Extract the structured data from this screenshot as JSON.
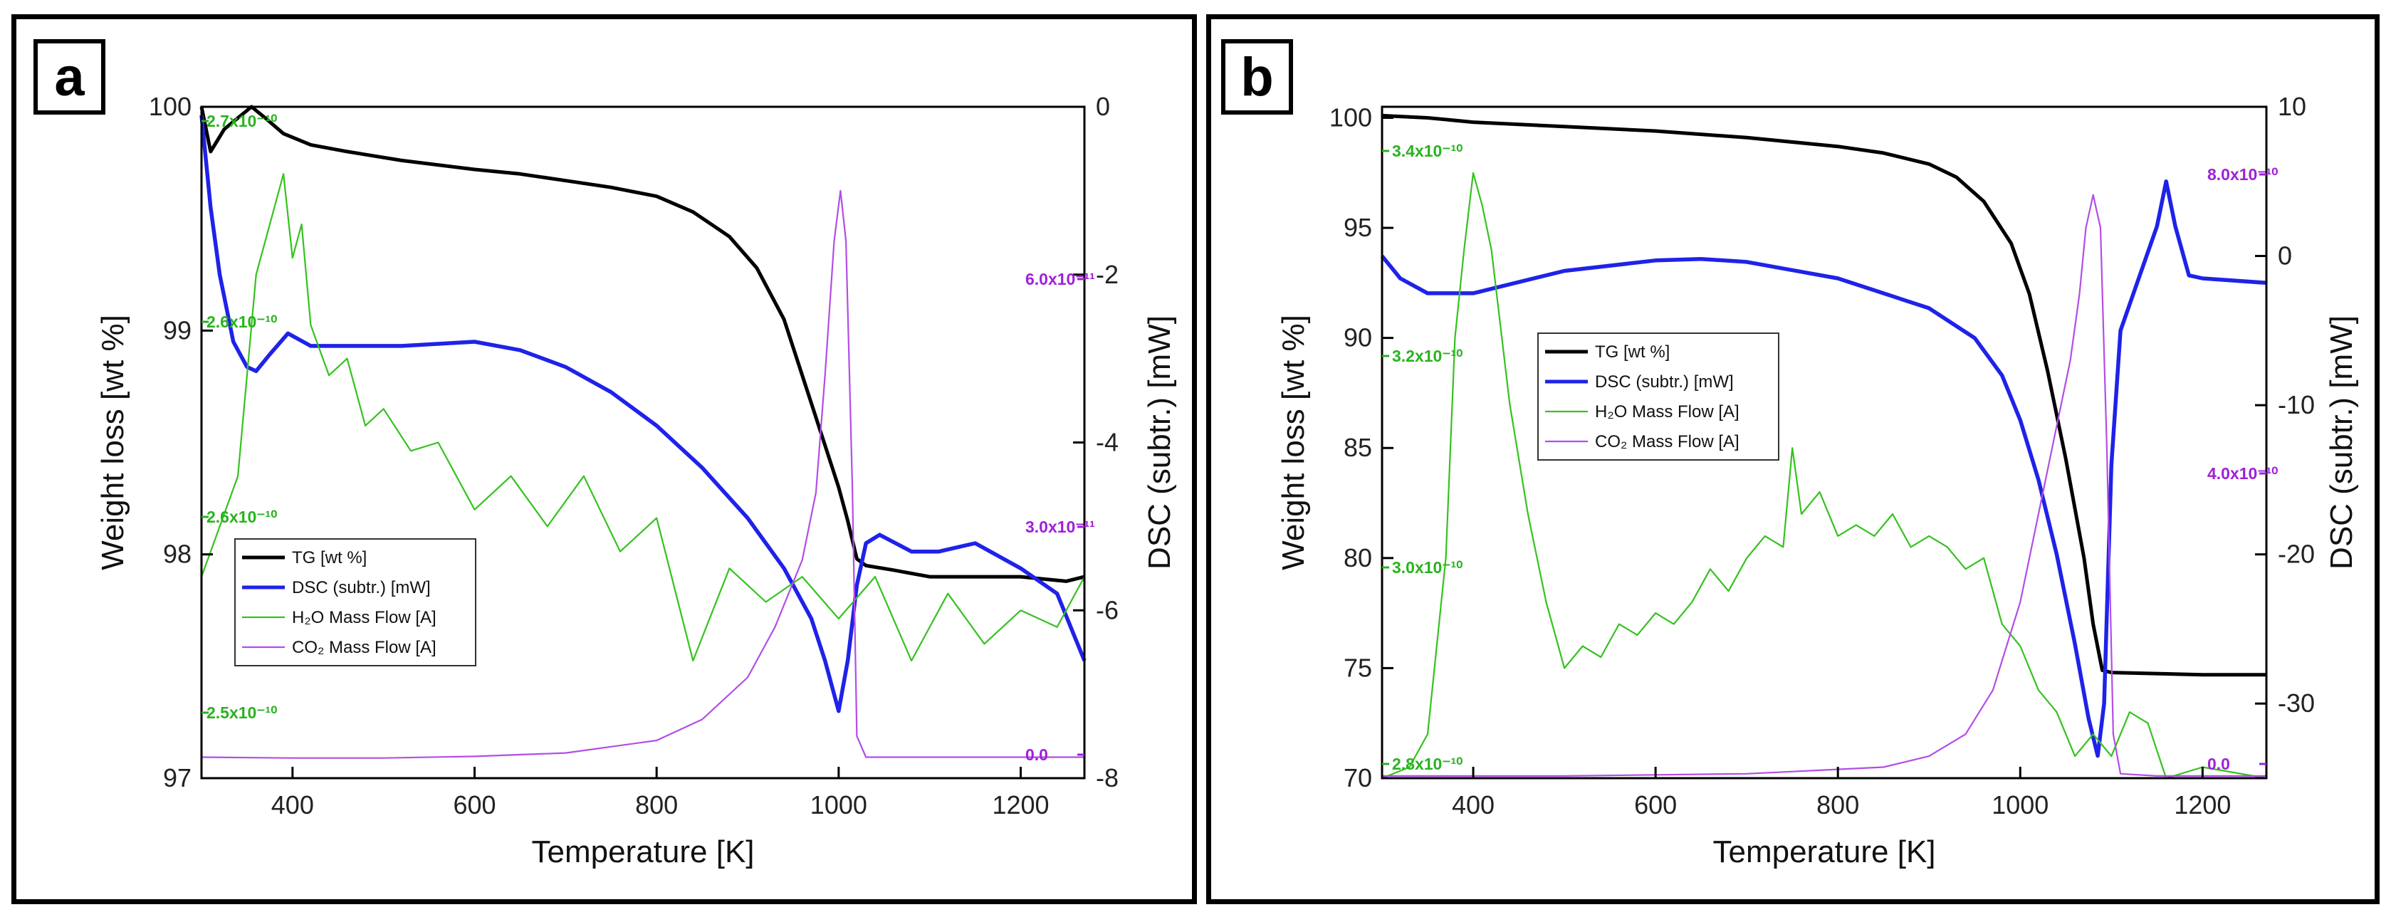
{
  "colors": {
    "tg": "#000000",
    "dsc": "#1f22e8",
    "h2o": "#35c21f",
    "co2": "#b34de6",
    "h2o_label": "#29b31f",
    "co2_label": "#a020d8"
  },
  "chart_data": [
    {
      "type": "line",
      "panel_label": "a",
      "xlabel": "Temperature [K]",
      "ylabel": "Weight loss [wt %]",
      "y2label": "DSC (subtr.) [mW]",
      "xlim": [
        300,
        1270
      ],
      "ylim": [
        97,
        100
      ],
      "y2lim": [
        -8,
        0
      ],
      "xticks": [
        "400",
        "600",
        "800",
        "1000",
        "1200"
      ],
      "yticks": [
        "97",
        "98",
        "99",
        "100"
      ],
      "y2ticks": [
        "-8",
        "-6",
        "-4",
        "-2",
        "0"
      ],
      "h2o_axis_labels": [
        "2.5x10⁻¹⁰",
        "2.6x10⁻¹⁰",
        "2.6x10⁻¹⁰",
        "2.7x10⁻¹⁰"
      ],
      "co2_axis_labels": [
        "0.0",
        "3.0x10⁻¹¹",
        "6.0x10⁻¹¹"
      ],
      "legend": [
        "TG [wt %]",
        "DSC (subtr.) [mW]",
        "H₂O Mass Flow [A]",
        "CO₂ Mass Flow [A]"
      ],
      "series": [
        {
          "name": "TG [wt %]",
          "axis": "left",
          "x": [
            300,
            310,
            325,
            340,
            355,
            370,
            390,
            420,
            460,
            520,
            600,
            650,
            700,
            750,
            800,
            840,
            880,
            910,
            940,
            960,
            980,
            1000,
            1010,
            1020,
            1030,
            1060,
            1100,
            1150,
            1200,
            1250,
            1270
          ],
          "y": [
            100,
            99.8,
            99.9,
            99.95,
            100,
            99.95,
            99.88,
            99.83,
            99.8,
            99.76,
            99.72,
            99.7,
            99.67,
            99.64,
            99.6,
            99.53,
            99.42,
            99.28,
            99.05,
            98.8,
            98.55,
            98.3,
            98.15,
            97.98,
            97.95,
            97.93,
            97.9,
            97.9,
            97.9,
            97.88,
            97.9
          ]
        },
        {
          "name": "DSC (subtr.) [mW]",
          "axis": "right",
          "x": [
            300,
            310,
            320,
            335,
            350,
            360,
            375,
            395,
            420,
            460,
            520,
            600,
            650,
            700,
            750,
            800,
            850,
            900,
            940,
            970,
            985,
            1000,
            1010,
            1020,
            1030,
            1045,
            1080,
            1110,
            1150,
            1200,
            1240,
            1270
          ],
          "y": [
            -0.1,
            -1.2,
            -2.0,
            -2.8,
            -3.1,
            -3.15,
            -2.95,
            -2.7,
            -2.85,
            -2.85,
            -2.85,
            -2.8,
            -2.9,
            -3.1,
            -3.4,
            -3.8,
            -4.3,
            -4.9,
            -5.5,
            -6.1,
            -6.6,
            -7.2,
            -6.6,
            -5.7,
            -5.2,
            -5.1,
            -5.3,
            -5.3,
            -5.2,
            -5.5,
            -5.8,
            -6.6
          ]
        },
        {
          "name": "H₂O Mass Flow [A]",
          "axis": "right",
          "unit_scale": "secondary",
          "x": [
            300,
            320,
            340,
            360,
            380,
            390,
            400,
            410,
            420,
            440,
            460,
            480,
            500,
            530,
            560,
            600,
            640,
            680,
            720,
            760,
            800,
            840,
            880,
            920,
            960,
            1000,
            1040,
            1080,
            1120,
            1160,
            1200,
            1240,
            1270
          ],
          "y": [
            -5.6,
            -5.0,
            -4.4,
            -2.0,
            -1.2,
            -0.8,
            -1.8,
            -1.4,
            -2.6,
            -3.2,
            -3.0,
            -3.8,
            -3.6,
            -4.1,
            -4.0,
            -4.8,
            -4.4,
            -5.0,
            -4.4,
            -5.3,
            -4.9,
            -6.6,
            -5.5,
            -5.9,
            -5.6,
            -6.1,
            -5.6,
            -6.6,
            -5.8,
            -6.4,
            -6.0,
            -6.2,
            -5.6
          ]
        },
        {
          "name": "CO₂ Mass Flow [A]",
          "axis": "right",
          "unit_scale": "secondary",
          "x": [
            300,
            400,
            500,
            600,
            700,
            800,
            850,
            900,
            930,
            960,
            975,
            985,
            995,
            1002,
            1008,
            1015,
            1020,
            1030,
            1100,
            1200,
            1270
          ],
          "y": [
            -7.75,
            -7.76,
            -7.76,
            -7.74,
            -7.7,
            -7.55,
            -7.3,
            -6.8,
            -6.2,
            -5.4,
            -4.6,
            -3.2,
            -1.6,
            -1.0,
            -1.6,
            -4.5,
            -7.5,
            -7.75,
            -7.75,
            -7.75,
            -7.75
          ]
        }
      ]
    },
    {
      "type": "line",
      "panel_label": "b",
      "xlabel": "Temperature [K]",
      "ylabel": "Weight loss [wt %]",
      "y2label": "DSC (subtr.) [mW]",
      "xlim": [
        300,
        1270
      ],
      "ylim": [
        70,
        100.5
      ],
      "y2lim": [
        -35,
        10
      ],
      "xticks": [
        "400",
        "600",
        "800",
        "1000",
        "1200"
      ],
      "yticks": [
        "70",
        "75",
        "80",
        "85",
        "90",
        "95",
        "100"
      ],
      "y2ticks": [
        "-30",
        "-20",
        "-10",
        "0",
        "10"
      ],
      "h2o_axis_labels": [
        "2.8x10⁻¹⁰",
        "3.0x10⁻¹⁰",
        "3.2x10⁻¹⁰",
        "3.4x10⁻¹⁰"
      ],
      "co2_axis_labels": [
        "0.0",
        "4.0x10⁻¹⁰",
        "8.0x10⁻¹⁰"
      ],
      "legend": [
        "TG [wt %]",
        "DSC (subtr.) [mW]",
        "H₂O Mass Flow [A]",
        "CO₂ Mass Flow [A]"
      ],
      "series": [
        {
          "name": "TG [wt %]",
          "axis": "left",
          "x": [
            300,
            350,
            400,
            500,
            600,
            700,
            800,
            850,
            900,
            930,
            960,
            990,
            1010,
            1030,
            1050,
            1070,
            1080,
            1090,
            1100,
            1200,
            1270
          ],
          "y": [
            100.1,
            100,
            99.8,
            99.6,
            99.4,
            99.1,
            98.7,
            98.4,
            97.9,
            97.3,
            96.2,
            94.3,
            92,
            88.5,
            84.5,
            80,
            77,
            74.9,
            74.8,
            74.7,
            74.7
          ]
        },
        {
          "name": "DSC (subtr.) [mW]",
          "axis": "right",
          "x": [
            300,
            320,
            350,
            400,
            500,
            600,
            650,
            700,
            800,
            900,
            950,
            980,
            1000,
            1020,
            1040,
            1060,
            1075,
            1085,
            1092,
            1100,
            1110,
            1130,
            1150,
            1160,
            1170,
            1185,
            1200,
            1270
          ],
          "y": [
            0,
            -1.5,
            -2.5,
            -2.5,
            -1,
            -0.3,
            -0.2,
            -0.4,
            -1.5,
            -3.5,
            -5.5,
            -8,
            -11,
            -15,
            -20,
            -26,
            -31,
            -33.5,
            -30,
            -14,
            -5,
            -1.5,
            2,
            5,
            2,
            -1.3,
            -1.5,
            -1.8
          ]
        },
        {
          "name": "H₂O Mass Flow [A]",
          "axis": "left",
          "unit_scale": "secondary",
          "x": [
            300,
            330,
            350,
            370,
            380,
            390,
            400,
            410,
            420,
            440,
            460,
            480,
            500,
            520,
            540,
            560,
            580,
            600,
            620,
            640,
            660,
            680,
            700,
            720,
            740,
            750,
            760,
            780,
            800,
            820,
            840,
            860,
            880,
            900,
            920,
            940,
            960,
            980,
            1000,
            1020,
            1040,
            1060,
            1080,
            1100,
            1120,
            1140,
            1160,
            1200,
            1270
          ],
          "y": [
            70,
            70.5,
            72,
            80,
            90,
            94,
            97.5,
            96,
            94,
            87,
            82,
            78,
            75,
            76,
            75.5,
            77,
            76.5,
            77.5,
            77,
            78,
            79.5,
            78.5,
            80,
            81,
            80.5,
            85,
            82,
            83,
            81,
            81.5,
            81,
            82,
            80.5,
            81,
            80.5,
            79.5,
            80,
            77,
            76,
            74,
            73,
            71,
            72,
            71,
            73,
            72.5,
            70,
            70.5,
            70
          ]
        },
        {
          "name": "CO₂ Mass Flow [A]",
          "axis": "left",
          "unit_scale": "secondary",
          "x": [
            300,
            500,
            700,
            850,
            900,
            940,
            970,
            1000,
            1020,
            1040,
            1055,
            1065,
            1072,
            1080,
            1088,
            1095,
            1102,
            1110,
            1150,
            1200,
            1270
          ],
          "y": [
            70.1,
            70.1,
            70.2,
            70.5,
            71,
            72,
            74,
            78,
            82,
            86,
            89,
            92,
            95,
            96.5,
            95,
            85,
            72,
            70.2,
            70.1,
            70.1,
            70.1
          ]
        }
      ]
    }
  ]
}
